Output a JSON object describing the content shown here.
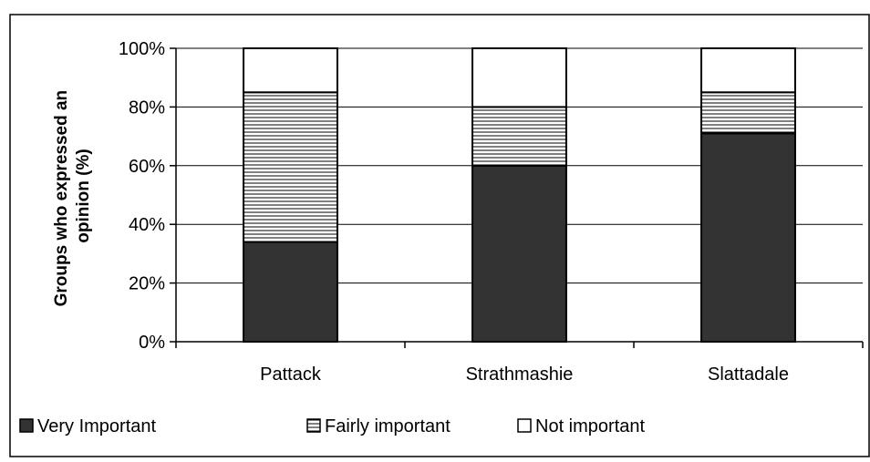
{
  "chart_data": {
    "type": "bar",
    "stacked": true,
    "categories": [
      "Pattack",
      "Strathmashie",
      "Slattadale"
    ],
    "series": [
      {
        "name": "Very Important",
        "values": [
          34,
          60,
          71
        ],
        "color": "#333333",
        "pattern": "solid"
      },
      {
        "name": "Fairly important",
        "values": [
          51,
          20,
          14
        ],
        "color": "#ffffff",
        "pattern": "horizontal-lines"
      },
      {
        "name": "Not important",
        "values": [
          15,
          20,
          15
        ],
        "color": "#ffffff",
        "pattern": "none"
      }
    ],
    "ylabel_lines": [
      "Groups who expressed an",
      "opinion (%)"
    ],
    "yticks": [
      "0%",
      "20%",
      "40%",
      "60%",
      "80%",
      "100%"
    ],
    "ylim": [
      0,
      100
    ],
    "grid": true,
    "legend_position": "bottom"
  }
}
